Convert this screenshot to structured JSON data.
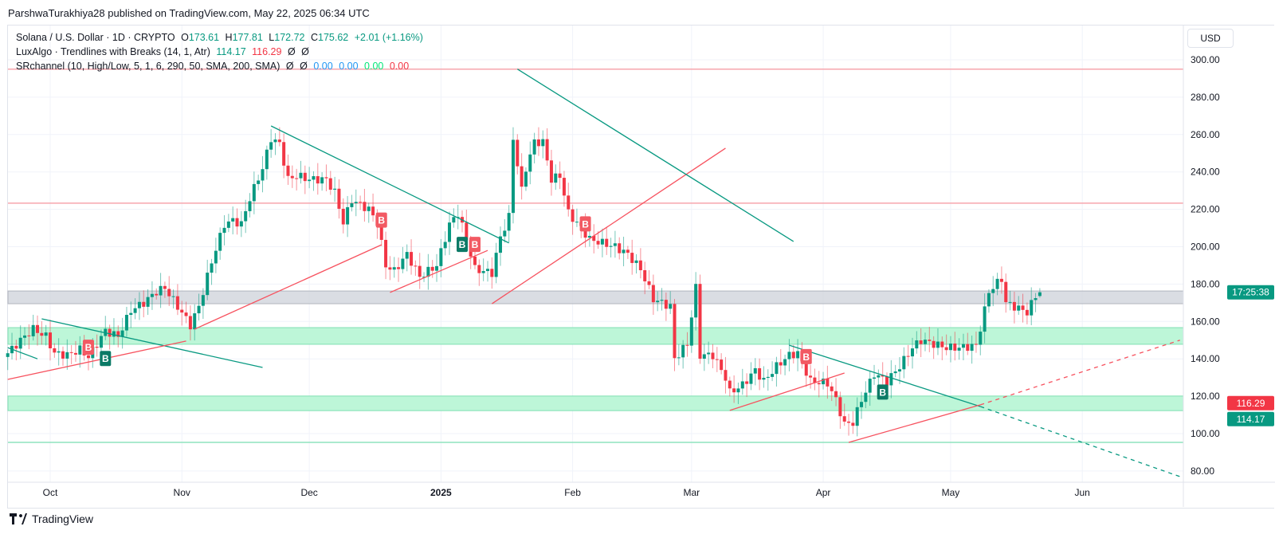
{
  "publisher": "ParshwaTurakhiya28 published on TradingView.com, May 22, 2025 06:34 UTC",
  "legend": {
    "symbol": "Solana / U.S. Dollar · 1D · CRYPTO",
    "o_label": "O",
    "o": "173.61",
    "h_label": "H",
    "h": "177.81",
    "l_label": "L",
    "l": "172.72",
    "c_label": "C",
    "c": "175.62",
    "change": "+2.01 (+1.16%)",
    "ind1_name": "LuxAlgo · Trendlines with Breaks (14, 1, Atr)",
    "ind1_v1": "114.17",
    "ind1_v2": "116.29",
    "ind1_v3": "Ø",
    "ind1_v4": "Ø",
    "ind2_name": "SRchannel (10, High/Low, 5, 1, 6, 290, 50, SMA, 200, SMA)",
    "ind2_v1": "Ø",
    "ind2_v2": "Ø",
    "ind2_v3": "0.00",
    "ind2_v4": "0.00",
    "ind2_v5": "0.00",
    "ind2_v6": "0.00"
  },
  "currency_button": "USD",
  "footer_brand": "TradingView",
  "colors": {
    "up": "#089981",
    "down": "#f23645",
    "zone_green": "#b9f6d6",
    "zone_gray": "#d1d4dc",
    "trend_green": "#089981",
    "trend_red": "#f7525f"
  },
  "chart_data": {
    "type": "candlestick",
    "interval": "1D",
    "ylim": [
      75,
      305
    ],
    "y_ticks": [
      "300.00",
      "280.00",
      "260.00",
      "240.00",
      "220.00",
      "200.00",
      "180.00",
      "160.00",
      "140.00",
      "120.00",
      "100.00",
      "80.00"
    ],
    "x_ticks": [
      {
        "label": "Oct",
        "date": "2024-10-01"
      },
      {
        "label": "Nov",
        "date": "2024-11-01"
      },
      {
        "label": "Dec",
        "date": "2024-12-01"
      },
      {
        "label": "2025",
        "date": "2025-01-01"
      },
      {
        "label": "Feb",
        "date": "2025-02-01"
      },
      {
        "label": "Mar",
        "date": "2025-03-01"
      },
      {
        "label": "Apr",
        "date": "2025-04-01"
      },
      {
        "label": "May",
        "date": "2025-05-01"
      },
      {
        "label": "Jun",
        "date": "2025-06-01"
      }
    ],
    "close_points": [
      [
        "2024-09-21",
        143
      ],
      [
        "2024-09-24",
        150
      ],
      [
        "2024-09-27",
        156
      ],
      [
        "2024-09-30",
        152
      ],
      [
        "2024-10-02",
        143
      ],
      [
        "2024-10-05",
        142
      ],
      [
        "2024-10-08",
        145
      ],
      [
        "2024-10-10",
        141
      ],
      [
        "2024-10-14",
        155
      ],
      [
        "2024-10-17",
        152
      ],
      [
        "2024-10-20",
        166
      ],
      [
        "2024-10-23",
        170
      ],
      [
        "2024-10-26",
        176
      ],
      [
        "2024-10-28",
        178
      ],
      [
        "2024-10-31",
        168
      ],
      [
        "2024-11-03",
        158
      ],
      [
        "2024-11-05",
        168
      ],
      [
        "2024-11-08",
        192
      ],
      [
        "2024-11-11",
        212
      ],
      [
        "2024-11-13",
        214
      ],
      [
        "2024-11-15",
        212
      ],
      [
        "2024-11-17",
        226
      ],
      [
        "2024-11-20",
        242
      ],
      [
        "2024-11-22",
        258
      ],
      [
        "2024-11-24",
        255
      ],
      [
        "2024-11-26",
        236
      ],
      [
        "2024-11-28",
        238
      ],
      [
        "2024-12-01",
        236
      ],
      [
        "2024-12-05",
        236
      ],
      [
        "2024-12-07",
        229
      ],
      [
        "2024-12-09",
        213
      ],
      [
        "2024-12-11",
        225
      ],
      [
        "2024-12-15",
        220
      ],
      [
        "2024-12-17",
        213
      ],
      [
        "2024-12-19",
        190
      ],
      [
        "2024-12-21",
        187
      ],
      [
        "2024-12-24",
        196
      ],
      [
        "2024-12-27",
        184
      ],
      [
        "2024-12-31",
        190
      ],
      [
        "2025-01-03",
        212
      ],
      [
        "2025-01-05",
        218
      ],
      [
        "2025-01-07",
        204
      ],
      [
        "2025-01-09",
        188
      ],
      [
        "2025-01-13",
        186
      ],
      [
        "2025-01-15",
        205
      ],
      [
        "2025-01-17",
        216
      ],
      [
        "2025-01-18",
        258
      ],
      [
        "2025-01-20",
        230
      ],
      [
        "2025-01-21",
        242
      ],
      [
        "2025-01-23",
        256
      ],
      [
        "2025-01-25",
        256
      ],
      [
        "2025-01-27",
        236
      ],
      [
        "2025-01-29",
        238
      ],
      [
        "2025-01-31",
        218
      ],
      [
        "2025-02-03",
        210
      ],
      [
        "2025-02-05",
        204
      ],
      [
        "2025-02-08",
        202
      ],
      [
        "2025-02-11",
        200
      ],
      [
        "2025-02-14",
        196
      ],
      [
        "2025-02-17",
        188
      ],
      [
        "2025-02-20",
        172
      ],
      [
        "2025-02-24",
        168
      ],
      [
        "2025-02-25",
        140
      ],
      [
        "2025-02-28",
        148
      ],
      [
        "2025-03-02",
        178
      ],
      [
        "2025-03-03",
        142
      ],
      [
        "2025-03-06",
        142
      ],
      [
        "2025-03-09",
        130
      ],
      [
        "2025-03-10",
        122
      ],
      [
        "2025-03-13",
        126
      ],
      [
        "2025-03-16",
        134
      ],
      [
        "2025-03-18",
        128
      ],
      [
        "2025-03-21",
        136
      ],
      [
        "2025-03-24",
        142
      ],
      [
        "2025-03-26",
        143
      ],
      [
        "2025-03-29",
        128
      ],
      [
        "2025-04-02",
        127
      ],
      [
        "2025-04-04",
        118
      ],
      [
        "2025-04-06",
        105
      ],
      [
        "2025-04-08",
        106
      ],
      [
        "2025-04-10",
        118
      ],
      [
        "2025-04-13",
        132
      ],
      [
        "2025-04-16",
        128
      ],
      [
        "2025-04-19",
        136
      ],
      [
        "2025-04-22",
        146
      ],
      [
        "2025-04-24",
        150
      ],
      [
        "2025-04-27",
        148
      ],
      [
        "2025-04-30",
        146
      ],
      [
        "2025-05-03",
        146
      ],
      [
        "2025-05-07",
        147
      ],
      [
        "2025-05-09",
        166
      ],
      [
        "2025-05-10",
        176
      ],
      [
        "2025-05-13",
        183
      ],
      [
        "2025-05-14",
        170
      ],
      [
        "2025-05-17",
        167
      ],
      [
        "2025-05-19",
        165
      ],
      [
        "2025-05-21",
        173.61
      ],
      [
        "2025-05-22",
        175.62
      ]
    ],
    "last_candle": {
      "date": "2025-05-22",
      "open": 173.61,
      "high": 177.81,
      "low": 172.72,
      "close": 175.62
    },
    "levels": [
      {
        "type": "line",
        "price": 295,
        "color": "#f7a6ad"
      },
      {
        "type": "line",
        "price": 223.3,
        "color": "#f7a6ad"
      },
      {
        "type": "zone",
        "from": 169.5,
        "to": 176.3,
        "color": "gray"
      },
      {
        "type": "zone",
        "from": 147.8,
        "to": 156.7,
        "color": "green"
      },
      {
        "type": "zone",
        "from": 112.3,
        "to": 120.1,
        "color": "green"
      },
      {
        "type": "line",
        "price": 95.3,
        "color": "#8fe3bd"
      }
    ],
    "trendlines": [
      {
        "color": "green",
        "from": [
          "2024-09-21",
          146
        ],
        "to": [
          "2024-09-28",
          140
        ]
      },
      {
        "color": "green",
        "from": [
          "2024-09-29",
          161.4
        ],
        "to": [
          "2024-11-20",
          135.4
        ]
      },
      {
        "color": "red",
        "from": [
          "2024-09-21",
          129
        ],
        "to": [
          "2024-11-02",
          149.5
        ]
      },
      {
        "color": "red",
        "from": [
          "2024-11-04",
          155.9
        ],
        "to": [
          "2024-12-18",
          201
        ]
      },
      {
        "color": "green",
        "from": [
          "2024-11-22",
          264.6
        ],
        "to": [
          "2025-01-17",
          202
        ]
      },
      {
        "color": "red",
        "from": [
          "2024-12-20",
          175.5
        ],
        "to": [
          "2025-01-12",
          198
        ]
      },
      {
        "color": "red",
        "from": [
          "2025-01-13",
          169.5
        ],
        "to": [
          "2025-03-09",
          252.7
        ]
      },
      {
        "color": "green",
        "from": [
          "2025-01-19",
          295
        ],
        "to": [
          "2025-03-25",
          202.8
        ]
      },
      {
        "color": "red",
        "from": [
          "2025-03-10",
          112.4
        ],
        "to": [
          "2025-04-06",
          132.4
        ]
      },
      {
        "color": "green",
        "from": [
          "2025-03-24",
          147.3
        ],
        "to": [
          "2025-05-08",
          114.5
        ]
      },
      {
        "color": "green",
        "dashed": true,
        "from": [
          "2025-05-08",
          114.5
        ],
        "to": [
          "2025-06-24",
          77
        ]
      },
      {
        "color": "red",
        "from": [
          "2025-04-07",
          95.3
        ],
        "to": [
          "2025-05-08",
          115.4
        ]
      },
      {
        "color": "red",
        "dashed": true,
        "from": [
          "2025-05-08",
          115.4
        ],
        "to": [
          "2025-06-24",
          150
        ]
      }
    ],
    "break_markers": [
      {
        "label": "B",
        "color": "red",
        "date": "2024-10-10",
        "price": 146
      },
      {
        "label": "B",
        "color": "green",
        "date": "2024-10-14",
        "price": 140
      },
      {
        "label": "B",
        "color": "red",
        "date": "2024-12-18",
        "price": 214
      },
      {
        "label": "B",
        "color": "green",
        "date": "2025-01-06",
        "price": 201
      },
      {
        "label": "B",
        "color": "red",
        "date": "2025-01-09",
        "price": 201
      },
      {
        "label": "B",
        "color": "red",
        "date": "2025-02-04",
        "price": 212
      },
      {
        "label": "B",
        "color": "red",
        "date": "2025-03-28",
        "price": 141
      },
      {
        "label": "B",
        "color": "green",
        "date": "2025-04-15",
        "price": 122
      }
    ],
    "price_tags": [
      {
        "text": "17:25:38",
        "price": 175.6,
        "color": "#089981"
      },
      {
        "text": "116.29",
        "price": 116.29,
        "color": "#f23645"
      },
      {
        "text": "114.17",
        "price": 114.17,
        "color": "#089981"
      }
    ]
  }
}
